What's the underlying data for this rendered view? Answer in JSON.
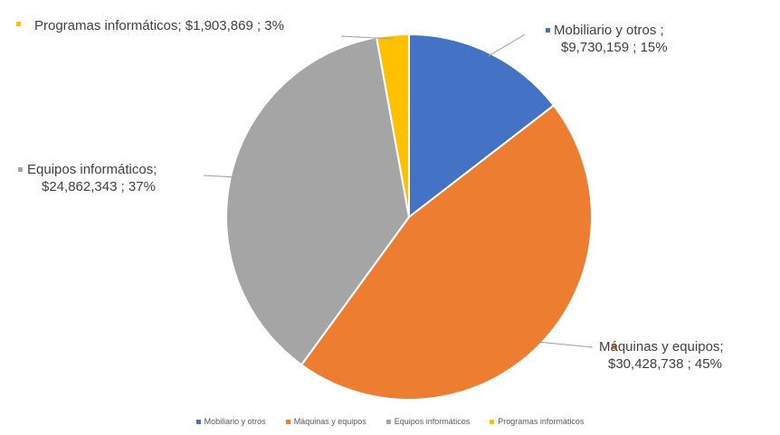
{
  "chart_data": {
    "type": "pie",
    "categories": [
      "Mobiliario y otros",
      "Máquinas y equipos",
      "Equipos informáticos",
      "Programas informáticos"
    ],
    "values": [
      9730159,
      30428738,
      24862343,
      1903869
    ],
    "percent": [
      15,
      45,
      37,
      3
    ],
    "colors": [
      "#4472C4",
      "#ED7D31",
      "#A5A5A5",
      "#FFC000"
    ],
    "data_labels": [
      {
        "line1": "Mobiliario y otros ;",
        "line2": "$9,730,159 ; 15%"
      },
      {
        "line1": "Máquinas y equipos;",
        "line2": "$30,428,738 ; 45%"
      },
      {
        "line1": "Equipos informáticos;",
        "line2": "$24,862,343 ; 37%"
      },
      {
        "line1": "Programas informáticos; $1,903,869 ; 3%",
        "line2": ""
      }
    ],
    "legend": {
      "position": "bottom",
      "entries": [
        "Mobiliario y otros",
        "Máquinas y equipos",
        "Equipos informáticos",
        "Programas informáticos"
      ]
    },
    "title": ""
  }
}
